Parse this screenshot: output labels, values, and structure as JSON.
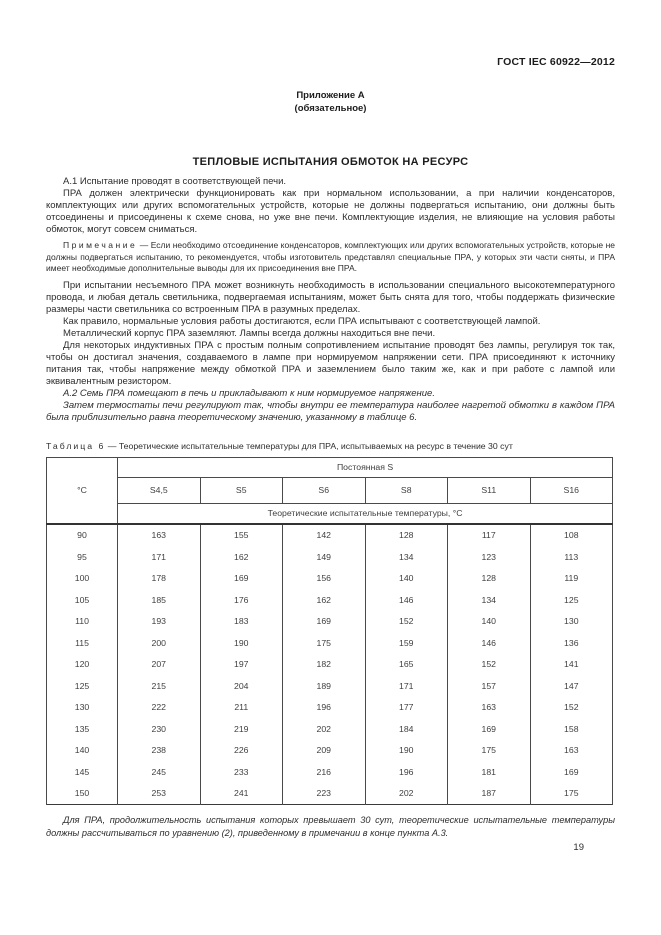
{
  "header": {
    "doc_code": "ГОСТ IEC 60922—2012",
    "annex_name": "Приложение А",
    "annex_qualifier": "(обязательное)"
  },
  "title": "ТЕПЛОВЫЕ ИСПЫТАНИЯ ОБМОТОК НА РЕСУРС",
  "paragraphs": [
    {
      "style": "body",
      "text": "А.1 Испытание проводят в соответствующей печи."
    },
    {
      "style": "body",
      "text": "ПРА должен электрически функционировать как при нормальном использовании, а при наличии конденсаторов, комплектующих или других вспомогательных устройств, которые не должны подвергаться испытанию, они должны быть отсоединены и присоединены к схеме снова, но уже вне печи. Комплектующие изделия, не влияющие на условия работы обмоток, могут совсем сниматься."
    },
    {
      "style": "note",
      "label": "Примечание",
      "text": "— Если необходимо отсоединение конденсаторов, комплектующих или других вспомогательных устройств, которые не должны подвергаться испытанию, то рекомендуется, чтобы изготовитель представлял специальные ПРА, у которых эти части сняты, и ПРА имеет необходимые дополнительные выводы для их присоединения вне ПРА."
    },
    {
      "style": "body",
      "text": "При испытании несъемного ПРА может возникнуть необходимость в использовании специального высокотемпературного провода, и любая деталь светильника, подвергаемая испытаниям, может быть снята для того, чтобы поддержать физические размеры части светильника со встроенным ПРА в разумных пределах."
    },
    {
      "style": "body",
      "text": "Как правило, нормальные условия работы достигаются, если ПРА испытывают с соответствующей лампой."
    },
    {
      "style": "body",
      "text": "Металлический корпус ПРА заземляют. Лампы всегда должны находиться вне печи."
    },
    {
      "style": "body",
      "text": "Для некоторых индуктивных ПРА с простым полным сопротивлением испытание проводят без лампы, регулируя ток так, чтобы он достигал значения, создаваемого в лампе при нормируемом напряжении сети. ПРА присоединяют к источнику питания так, чтобы напряжение между обмоткой ПРА и заземлением было таким же, как и при работе с лампой или эквивалентным резистором."
    },
    {
      "style": "italic",
      "text": "А.2 Семь ПРА помещают в печь и прикладывают к ним нормируемое напряжение."
    },
    {
      "style": "italic",
      "text": "Затем термостаты печи регулируют так, чтобы внутри ее температура наиболее нагретой обмотки в каждом ПРА была приблизительно равна теоретическому значению, указанному в таблице 6."
    }
  ],
  "table6": {
    "caption_label": "Таблица 6",
    "caption_text": "— Теоретические испытательные температуры для ПРА, испытываемых на ресурс в течение 30 сут",
    "col1_header": "°С",
    "group_header": "Постоянная S",
    "s_headers": [
      "S4,5",
      "S5",
      "S6",
      "S8",
      "S11",
      "S16"
    ],
    "sub_header": "Теоретические испытательные температуры, °С",
    "rows": [
      [
        "90",
        "163",
        "155",
        "142",
        "128",
        "117",
        "108"
      ],
      [
        "95",
        "171",
        "162",
        "149",
        "134",
        "123",
        "113"
      ],
      [
        "100",
        "178",
        "169",
        "156",
        "140",
        "128",
        "119"
      ],
      [
        "105",
        "185",
        "176",
        "162",
        "146",
        "134",
        "125"
      ],
      [
        "110",
        "193",
        "183",
        "169",
        "152",
        "140",
        "130"
      ],
      [
        "115",
        "200",
        "190",
        "175",
        "159",
        "146",
        "136"
      ],
      [
        "120",
        "207",
        "197",
        "182",
        "165",
        "152",
        "141"
      ],
      [
        "125",
        "215",
        "204",
        "189",
        "171",
        "157",
        "147"
      ],
      [
        "130",
        "222",
        "211",
        "196",
        "177",
        "163",
        "152"
      ],
      [
        "135",
        "230",
        "219",
        "202",
        "184",
        "169",
        "158"
      ],
      [
        "140",
        "238",
        "226",
        "209",
        "190",
        "175",
        "163"
      ],
      [
        "145",
        "245",
        "233",
        "216",
        "196",
        "181",
        "169"
      ],
      [
        "150",
        "253",
        "241",
        "223",
        "202",
        "187",
        "175"
      ]
    ]
  },
  "footnote": "Для ПРА, продолжительность испытания которых превышает 30 сут, теоретические испытательные температуры должны рассчитываться по уравнению (2), приведенному в примечании в конце пункта А.3.",
  "page_number": "19"
}
